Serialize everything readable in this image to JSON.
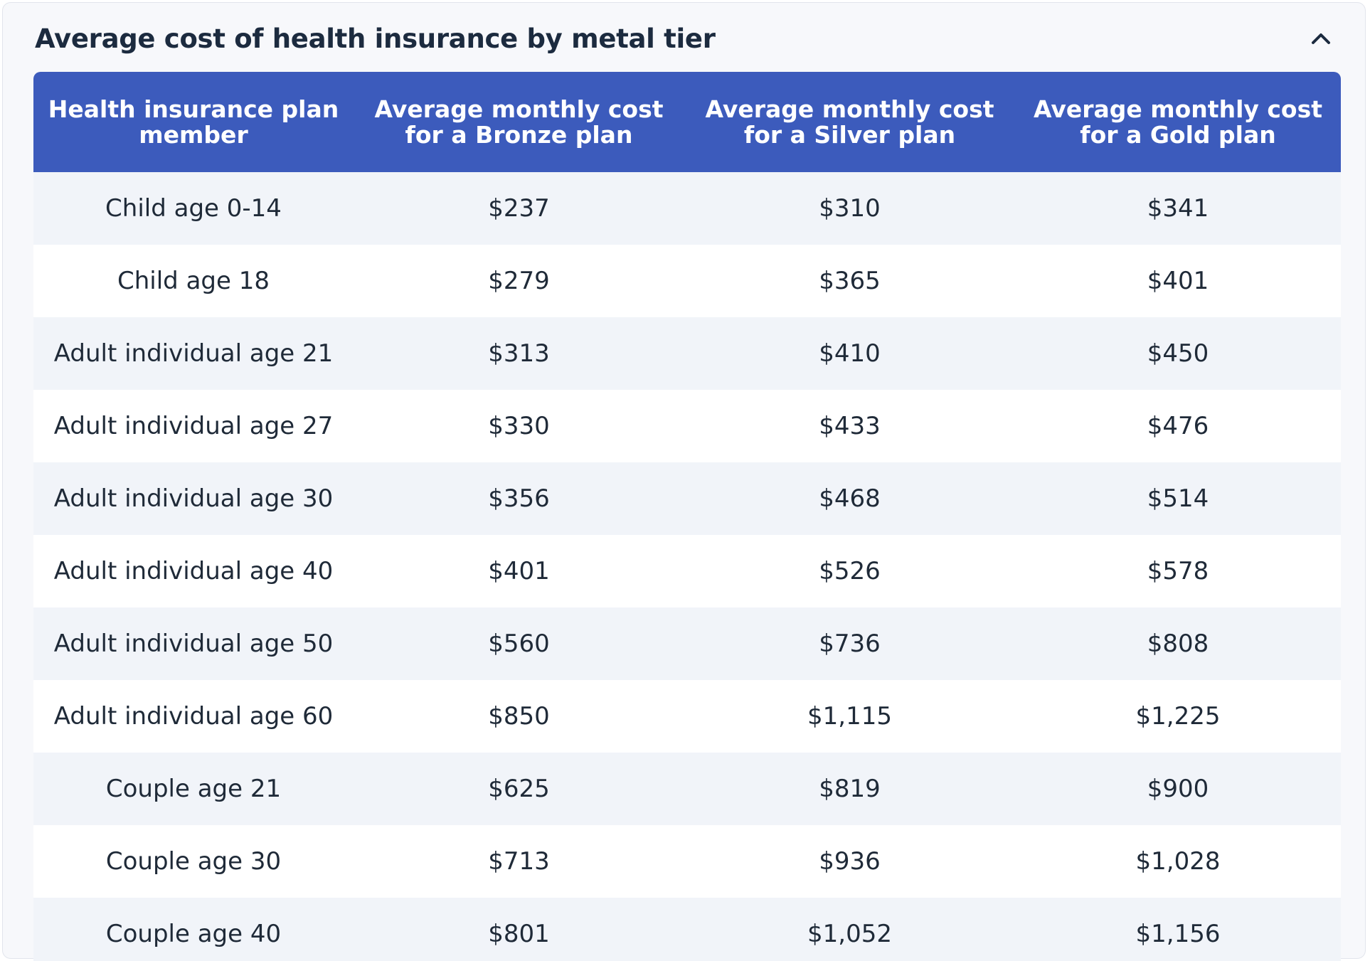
{
  "panel": {
    "title": "Average cost of health insurance by metal tier",
    "toggle_icon": "chevron-up-icon"
  },
  "table": {
    "headers": [
      "Health insurance plan member",
      "Average monthly cost for a Bronze plan",
      "Average monthly cost for a Silver plan",
      "Average monthly cost for a Gold plan"
    ],
    "rows": [
      [
        "Child age 0-14",
        "$237",
        "$310",
        "$341"
      ],
      [
        "Child age 18",
        "$279",
        "$365",
        "$401"
      ],
      [
        "Adult individual age 21",
        "$313",
        "$410",
        "$450"
      ],
      [
        "Adult individual age 27",
        "$330",
        "$433",
        "$476"
      ],
      [
        "Adult individual age 30",
        "$356",
        "$468",
        "$514"
      ],
      [
        "Adult individual age 40",
        "$401",
        "$526",
        "$578"
      ],
      [
        "Adult individual age 50",
        "$560",
        "$736",
        "$808"
      ],
      [
        "Adult individual age 60",
        "$850",
        "$1,115",
        "$1,225"
      ],
      [
        "Couple age 21",
        "$625",
        "$819",
        "$900"
      ],
      [
        "Couple age 30",
        "$713",
        "$936",
        "$1,028"
      ],
      [
        "Couple age 40",
        "$801",
        "$1,052",
        "$1,156"
      ]
    ]
  },
  "colors": {
    "header_bg": "#3c5bbc",
    "title_text": "#1c2b3f",
    "row_alt_bg": "#f1f4f9",
    "panel_bg": "#f7f8fb"
  }
}
